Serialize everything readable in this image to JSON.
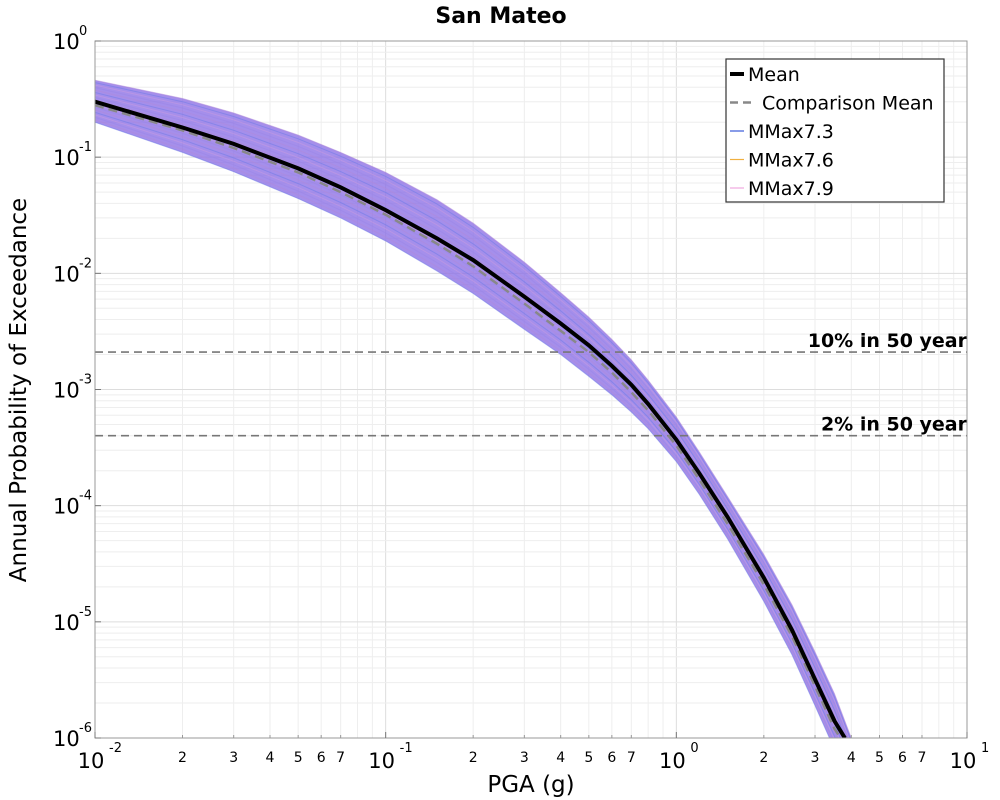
{
  "chart_data": {
    "type": "line",
    "title": "San Mateo",
    "xlabel": "PGA (g)",
    "ylabel": "Annual Probability of Exceedance",
    "xscale": "log",
    "yscale": "log",
    "xlim": [
      0.01,
      10
    ],
    "ylim": [
      1e-06,
      1
    ],
    "grid": true,
    "legend_position": "top-right",
    "x_major_ticks": [
      {
        "base": "10",
        "exp": "-2",
        "value": 0.01
      },
      {
        "base": "10",
        "exp": "-1",
        "value": 0.1
      },
      {
        "base": "10",
        "exp": "0",
        "value": 1
      },
      {
        "base": "10",
        "exp": "1",
        "value": 10
      }
    ],
    "x_minor_tick_labels": [
      "2",
      "3",
      "4",
      "5",
      "6",
      "7"
    ],
    "y_major_ticks": [
      {
        "base": "10",
        "exp": "0",
        "value": 1
      },
      {
        "base": "10",
        "exp": "-1",
        "value": 0.1
      },
      {
        "base": "10",
        "exp": "-2",
        "value": 0.01
      },
      {
        "base": "10",
        "exp": "-3",
        "value": 0.001
      },
      {
        "base": "10",
        "exp": "-4",
        "value": 0.0001
      },
      {
        "base": "10",
        "exp": "-5",
        "value": 1e-05
      },
      {
        "base": "10",
        "exp": "-6",
        "value": 1e-06
      }
    ],
    "reference_lines": [
      {
        "label": "10% in 50 year",
        "y": 0.0021,
        "color": "#777777"
      },
      {
        "label": "2% in 50 year",
        "y": 0.0004,
        "color": "#777777"
      }
    ],
    "mean_curve": {
      "name": "Mean",
      "color": "#000000",
      "x": [
        0.01,
        0.02,
        0.03,
        0.05,
        0.07,
        0.1,
        0.15,
        0.2,
        0.3,
        0.4,
        0.5,
        0.6,
        0.7,
        0.8,
        1.0,
        1.2,
        1.5,
        2.0,
        2.5,
        3.0,
        3.5,
        3.8
      ],
      "y": [
        0.3,
        0.18,
        0.13,
        0.08,
        0.055,
        0.035,
        0.02,
        0.013,
        0.0063,
        0.0037,
        0.0024,
        0.0016,
        0.0011,
        0.00075,
        0.00037,
        0.00019,
        8e-05,
        2.4e-05,
        8.5e-06,
        3.2e-06,
        1.4e-06,
        1e-06
      ]
    },
    "comparison_mean": {
      "name": "Comparison Mean",
      "color": "#888888",
      "x": [
        0.01,
        0.02,
        0.03,
        0.05,
        0.07,
        0.1,
        0.15,
        0.2,
        0.3,
        0.4,
        0.5,
        0.6,
        0.7,
        0.8,
        1.0,
        1.2,
        1.5,
        2.0,
        2.5,
        3.0,
        3.5,
        3.8
      ],
      "y": [
        0.28,
        0.17,
        0.12,
        0.074,
        0.05,
        0.032,
        0.018,
        0.0115,
        0.0055,
        0.0032,
        0.0021,
        0.0014,
        0.00095,
        0.00066,
        0.00033,
        0.000168,
        7e-05,
        2.1e-05,
        7.5e-06,
        2.8e-06,
        1.2e-06,
        8.8e-07
      ]
    },
    "band": {
      "color": "#8c6fe6",
      "x": [
        0.01,
        0.02,
        0.03,
        0.05,
        0.07,
        0.1,
        0.15,
        0.2,
        0.3,
        0.4,
        0.5,
        0.6,
        0.7,
        0.8,
        1.0,
        1.2,
        1.5,
        2.0,
        2.5,
        3.0,
        3.5,
        4.0
      ],
      "upper": [
        0.46,
        0.32,
        0.24,
        0.155,
        0.11,
        0.074,
        0.043,
        0.027,
        0.0125,
        0.0068,
        0.0042,
        0.0027,
        0.0018,
        0.0012,
        0.00058,
        0.00029,
        0.00012,
        3.8e-05,
        1.4e-05,
        5.5e-06,
        2.4e-06,
        1e-06
      ],
      "lower": [
        0.2,
        0.11,
        0.075,
        0.044,
        0.03,
        0.019,
        0.0105,
        0.0067,
        0.0033,
        0.002,
        0.0013,
        0.0009,
        0.00064,
        0.00046,
        0.00024,
        0.000125,
        5.2e-05,
        1.5e-05,
        5.2e-06,
        1.9e-06,
        8e-07,
        3.5e-07
      ]
    },
    "series": [
      {
        "name": "MMax7.3",
        "color": "#3a5ad8"
      },
      {
        "name": "MMax7.6",
        "color": "#f0b040"
      },
      {
        "name": "MMax7.9",
        "color": "#f0a8e0"
      }
    ]
  }
}
